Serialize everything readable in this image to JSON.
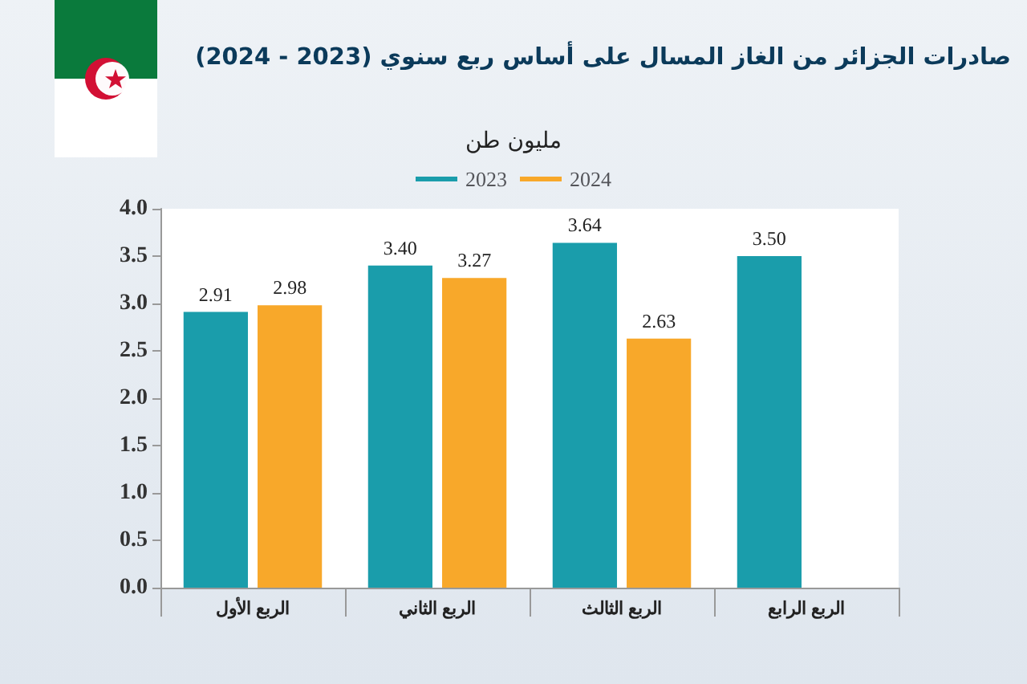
{
  "chart_data": {
    "type": "bar",
    "title": "صادرات الجزائر من الغاز المسال على أساس ربع سنوي (2023 - 2024)",
    "ylabel": "مليون طن",
    "categories": [
      "الربع الأول",
      "الربع الثاني",
      "الربع الثالث",
      "الربع الرابع"
    ],
    "series": [
      {
        "name": "2023",
        "color": "#1a9dab",
        "values": [
          2.91,
          3.4,
          3.64,
          3.5
        ],
        "value_labels": [
          "2.91",
          "3.40",
          "3.64",
          "3.50"
        ]
      },
      {
        "name": "2024",
        "color": "#f8a82a",
        "values": [
          2.98,
          3.27,
          2.63,
          null
        ],
        "value_labels": [
          "2.98",
          "3.27",
          "2.63",
          null
        ]
      }
    ],
    "ylim": [
      0,
      4
    ],
    "yticks": [
      {
        "value": 0,
        "label": "0.0"
      },
      0.5,
      {
        "value": 1,
        "label": "1.0"
      },
      1.5,
      {
        "value": 2,
        "label": "2.0"
      },
      2.5,
      {
        "value": 3,
        "label": "3.0"
      },
      3.5,
      {
        "value": 4,
        "label": "4.0"
      }
    ],
    "grid": false,
    "legend": "top"
  }
}
